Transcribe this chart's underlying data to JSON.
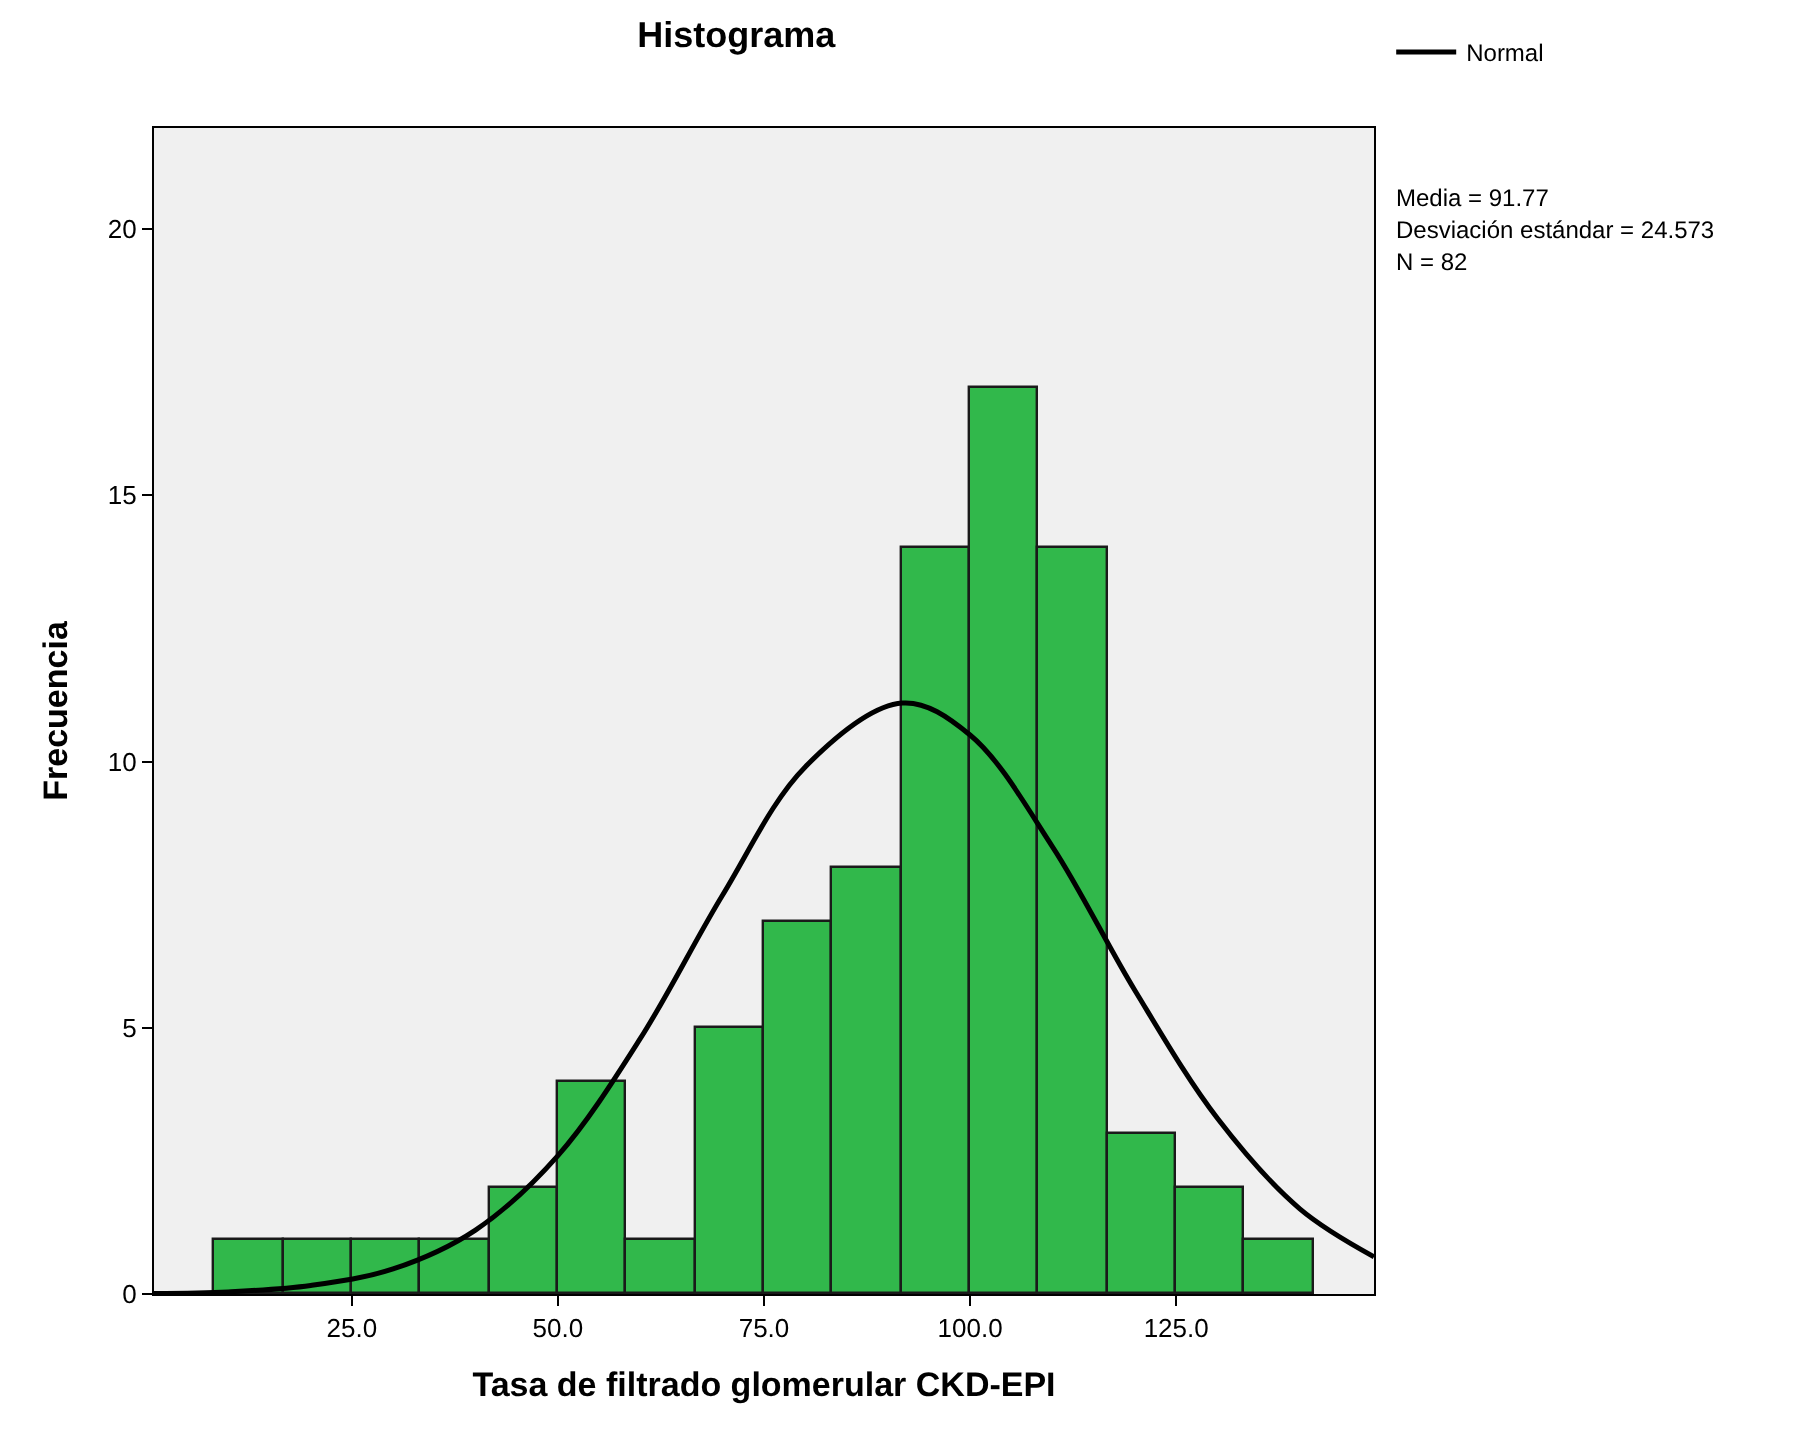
{
  "chart_data": {
    "type": "histogram",
    "title": "Histograma",
    "xlabel": "Tasa de filtrado glomerular CKD-EPI",
    "ylabel": "Frecuencia",
    "bins": [
      8.33,
      16.67,
      25,
      33.33,
      41.67,
      50,
      58.33,
      66.67,
      75,
      83.33,
      91.67,
      100,
      108.33,
      116.67,
      125,
      133.33,
      141.67
    ],
    "values": [
      1,
      1,
      1,
      1,
      2,
      4,
      1,
      5,
      7,
      8,
      14,
      17,
      14,
      3,
      2,
      1
    ],
    "color": "#31b84b",
    "series": [
      {
        "name": "Normal",
        "type": "line",
        "color": "#000000",
        "x": [
          1,
          10,
          20,
          30,
          40,
          50,
          60,
          70,
          80,
          91.77,
          100,
          110,
          120,
          130,
          140,
          149
        ],
        "values": [
          0.01,
          0.04,
          0.16,
          0.47,
          1.2,
          2.6,
          4.8,
          7.5,
          9.9,
          11.1,
          10.5,
          8.4,
          5.7,
          3.3,
          1.6,
          0.7
        ]
      }
    ],
    "annotations": [
      "Media = 91.77",
      "Desviación estándar = 24.573",
      "N = 82"
    ],
    "xlim": [
      1,
      149
    ],
    "ylim": [
      0,
      21.9
    ],
    "xticks": [
      {
        "value": 25,
        "label": "25.0"
      },
      {
        "value": 50,
        "label": "50.0"
      },
      {
        "value": 75,
        "label": "75.0"
      },
      {
        "value": 100,
        "label": "100.0"
      },
      {
        "value": 125,
        "label": "125.0"
      }
    ],
    "yticks": [
      0,
      5,
      10,
      15,
      20
    ],
    "grid": false,
    "legend": "top right"
  }
}
